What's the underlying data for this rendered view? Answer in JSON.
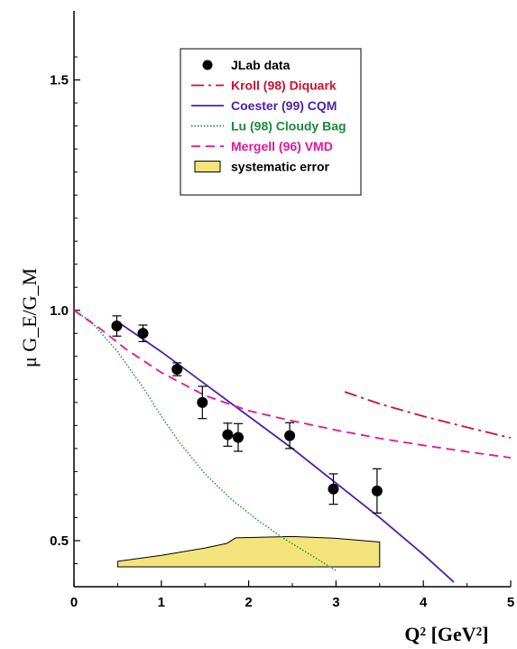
{
  "chart_data": {
    "type": "line",
    "x_axis": {
      "min": 0,
      "max": 5,
      "ticks": [
        0,
        1,
        2,
        3,
        4,
        5
      ],
      "tick_labels": [
        "0",
        "1",
        "2",
        "3",
        "4",
        "5"
      ],
      "label": "Q² [GeV²]"
    },
    "y_axis": {
      "min": 0.4,
      "max": 1.65,
      "ticks": [
        0.5,
        1.0,
        1.5
      ],
      "tick_labels": [
        "0.5",
        "1.0",
        "1.5"
      ],
      "label": "μ G_E/G_M"
    },
    "legend": {
      "placement": "top-center",
      "entries": [
        {
          "key": "jlab",
          "label": "JLab data",
          "color": "#000000",
          "style": "marker"
        },
        {
          "key": "kroll",
          "label": "Kroll (98) Diquark",
          "color": "#cc1133",
          "style": "dashdot"
        },
        {
          "key": "coester",
          "label": "Coester (99) CQM",
          "color": "#4b1fa8",
          "style": "solid"
        },
        {
          "key": "lu",
          "label": "Lu (98) Cloudy Bag",
          "color": "#1a8a3a",
          "style": "dotted"
        },
        {
          "key": "mergell",
          "label": "Mergell (96) VMD",
          "color": "#e0159e",
          "style": "dashed"
        },
        {
          "key": "syserr",
          "label": "systematic error",
          "color": "#f2e47a",
          "style": "band"
        }
      ]
    },
    "jlab_data": [
      {
        "x": 0.49,
        "y": 0.966,
        "err": 0.022
      },
      {
        "x": 0.79,
        "y": 0.95,
        "err": 0.018
      },
      {
        "x": 1.18,
        "y": 0.872,
        "err": 0.014
      },
      {
        "x": 1.47,
        "y": 0.8,
        "err": 0.035
      },
      {
        "x": 1.76,
        "y": 0.73,
        "err": 0.025
      },
      {
        "x": 1.88,
        "y": 0.724,
        "err": 0.03
      },
      {
        "x": 2.47,
        "y": 0.728,
        "err": 0.028
      },
      {
        "x": 2.97,
        "y": 0.612,
        "err": 0.033
      },
      {
        "x": 3.47,
        "y": 0.608,
        "err": 0.048
      }
    ],
    "series": [
      {
        "key": "kroll",
        "x": [
          3.1,
          3.5,
          4.0,
          4.5,
          5.0
        ],
        "y": [
          0.823,
          0.797,
          0.77,
          0.746,
          0.723
        ]
      },
      {
        "key": "coester",
        "x": [
          0.5,
          1.0,
          1.5,
          2.0,
          2.5,
          3.0,
          3.5,
          4.0,
          4.35
        ],
        "y": [
          0.975,
          0.91,
          0.84,
          0.77,
          0.7,
          0.625,
          0.55,
          0.47,
          0.41
        ]
      },
      {
        "key": "lu",
        "x": [
          0.0,
          0.2,
          0.5,
          0.8,
          1.0,
          1.2,
          1.5,
          1.8,
          2.1,
          2.4,
          2.7,
          3.0
        ],
        "y": [
          1.0,
          0.975,
          0.91,
          0.83,
          0.77,
          0.715,
          0.645,
          0.59,
          0.545,
          0.505,
          0.47,
          0.435
        ]
      },
      {
        "key": "mergell",
        "x": [
          0.0,
          0.3,
          0.6,
          1.0,
          1.5,
          2.0,
          2.5,
          3.0,
          3.5,
          4.0,
          4.5,
          5.0
        ],
        "y": [
          1.0,
          0.96,
          0.915,
          0.865,
          0.815,
          0.782,
          0.76,
          0.74,
          0.722,
          0.707,
          0.693,
          0.68
        ]
      }
    ],
    "systematic_error_band": {
      "upper": {
        "x": [
          0.5,
          1.0,
          1.5,
          1.75,
          1.85,
          2.5,
          3.0,
          3.5
        ],
        "y": [
          0.455,
          0.468,
          0.484,
          0.494,
          0.506,
          0.509,
          0.505,
          0.497
        ]
      },
      "lower": {
        "x": [
          3.5,
          0.5
        ],
        "y": [
          0.443,
          0.443
        ]
      }
    }
  }
}
